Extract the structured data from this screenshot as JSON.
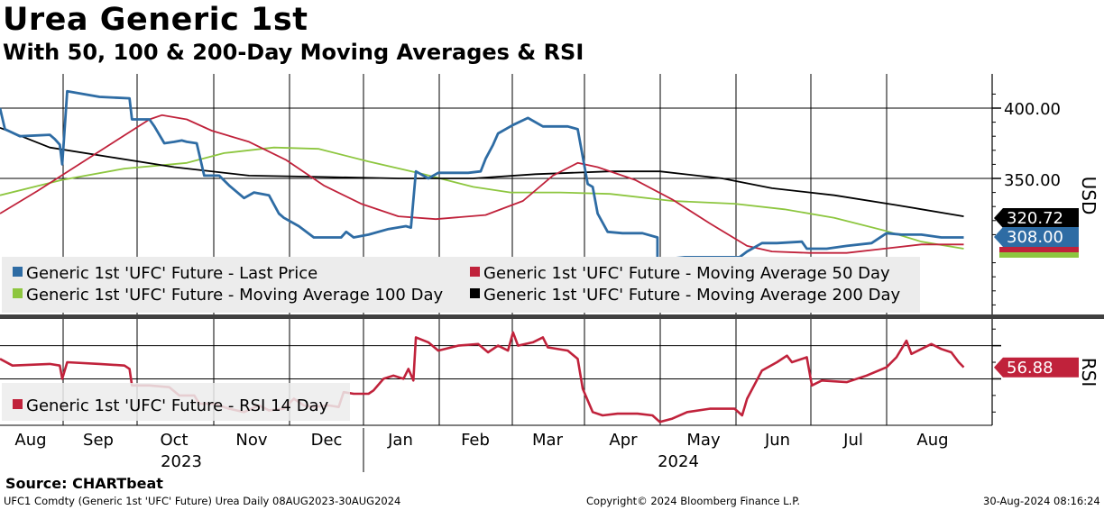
{
  "title": "Urea Generic 1st",
  "subtitle": "With 50, 100 & 200-Day Moving Averages & RSI",
  "source": "Source: CHARTbeat",
  "footer": {
    "left": "UFC1 Comdty (Generic 1st 'UFC' Future) Urea  Daily 08AUG2023-30AUG2024",
    "center": "Copyright© 2024 Bloomberg Finance L.P.",
    "right": "30-Aug-2024 08:16:24"
  },
  "colors": {
    "price": "#2e6ca4",
    "ma50": "#c0223b",
    "ma100": "#8dc63f",
    "ma200": "#000000",
    "rsi": "#c0223b"
  },
  "chart_data": [
    {
      "type": "line",
      "panel": "price",
      "title": "Urea Generic 1st",
      "ylabel": "USD",
      "ylim": [
        248,
        418
      ],
      "yticks": [
        400,
        350
      ],
      "ytick_labels": [
        "400.00",
        "350.00"
      ],
      "x_label_months": [
        "Aug",
        "Sep",
        "Oct",
        "Nov",
        "Dec",
        "Jan",
        "Feb",
        "Mar",
        "Apr",
        "May",
        "Jun",
        "Jul",
        "Aug"
      ],
      "x_label_years": [
        "2023",
        "2024"
      ],
      "x_range_days": [
        0,
        389
      ],
      "series": [
        {
          "name": "Generic 1st 'UFC' Future - Last Price",
          "color": "price",
          "points": [
            [
              0,
              400
            ],
            [
              2,
              385
            ],
            [
              8,
              380
            ],
            [
              20,
              381
            ],
            [
              22,
              378
            ],
            [
              24,
              374
            ],
            [
              25,
              360
            ],
            [
              27,
              412
            ],
            [
              40,
              408
            ],
            [
              52,
              407
            ],
            [
              53,
              392
            ],
            [
              60,
              392
            ],
            [
              62,
              387
            ],
            [
              66,
              375
            ],
            [
              70,
              376
            ],
            [
              73,
              377
            ],
            [
              75,
              376
            ],
            [
              79,
              375
            ],
            [
              82,
              352
            ],
            [
              88,
              352
            ],
            [
              92,
              345
            ],
            [
              98,
              336
            ],
            [
              102,
              340
            ],
            [
              108,
              338
            ],
            [
              112,
              325
            ],
            [
              114,
              322
            ],
            [
              120,
              316
            ],
            [
              126,
              308
            ],
            [
              133,
              308
            ],
            [
              137,
              308
            ],
            [
              139,
              312
            ],
            [
              142,
              308
            ],
            [
              148,
              310
            ],
            [
              156,
              314
            ],
            [
              163,
              316
            ],
            [
              165,
              315
            ],
            [
              167,
              355
            ],
            [
              172,
              350
            ],
            [
              176,
              354
            ],
            [
              188,
              354
            ],
            [
              193,
              355
            ],
            [
              195,
              364
            ],
            [
              198,
              374
            ],
            [
              200,
              382
            ],
            [
              206,
              388
            ],
            [
              212,
              393
            ],
            [
              218,
              387
            ],
            [
              228,
              387
            ],
            [
              232,
              385
            ],
            [
              236,
              346
            ],
            [
              238,
              344
            ],
            [
              240,
              325
            ],
            [
              244,
              312
            ],
            [
              250,
              311
            ],
            [
              258,
              311
            ],
            [
              264,
              308
            ],
            [
              264,
              292
            ],
            [
              275,
              294
            ],
            [
              288,
              294
            ],
            [
              297,
              294
            ],
            [
              300,
              298
            ],
            [
              306,
              304
            ],
            [
              312,
              304
            ],
            [
              322,
              305
            ],
            [
              324,
              300
            ],
            [
              332,
              300
            ],
            [
              340,
              302
            ],
            [
              350,
              304
            ],
            [
              356,
              311
            ],
            [
              362,
              310
            ],
            [
              370,
              310
            ],
            [
              378,
              308
            ],
            [
              387,
              308
            ]
          ]
        },
        {
          "name": "Generic 1st 'UFC' Future - Moving Average 50 Day",
          "color": "ma50",
          "points": [
            [
              0,
              325
            ],
            [
              15,
              341
            ],
            [
              30,
              358
            ],
            [
              45,
              375
            ],
            [
              60,
              392
            ],
            [
              65,
              395
            ],
            [
              75,
              392
            ],
            [
              85,
              384
            ],
            [
              100,
              376
            ],
            [
              115,
              363
            ],
            [
              130,
              345
            ],
            [
              145,
              332
            ],
            [
              160,
              323
            ],
            [
              175,
              321
            ],
            [
              195,
              324
            ],
            [
              210,
              334
            ],
            [
              222,
              352
            ],
            [
              232,
              361
            ],
            [
              240,
              358
            ],
            [
              255,
              349
            ],
            [
              270,
              335
            ],
            [
              285,
              318
            ],
            [
              300,
              302
            ],
            [
              310,
              298
            ],
            [
              325,
              297
            ],
            [
              340,
              297
            ],
            [
              355,
              300
            ],
            [
              370,
              303
            ],
            [
              387,
              303
            ]
          ]
        },
        {
          "name": "Generic 1st 'UFC' Future - Moving Average 100 Day",
          "color": "ma100",
          "points": [
            [
              0,
              338
            ],
            [
              25,
              349
            ],
            [
              50,
              357
            ],
            [
              75,
              361
            ],
            [
              90,
              368
            ],
            [
              110,
              372
            ],
            [
              128,
              371
            ],
            [
              148,
              362
            ],
            [
              170,
              353
            ],
            [
              190,
              344
            ],
            [
              205,
              340
            ],
            [
              225,
              340
            ],
            [
              245,
              339
            ],
            [
              270,
              334
            ],
            [
              295,
              332
            ],
            [
              315,
              328
            ],
            [
              335,
              322
            ],
            [
              355,
              313
            ],
            [
              370,
              305
            ],
            [
              387,
              300
            ]
          ]
        },
        {
          "name": "Generic 1st 'UFC' Future - Moving Average 200 Day",
          "color": "ma200",
          "points": [
            [
              0,
              386
            ],
            [
              20,
              372
            ],
            [
              45,
              365
            ],
            [
              70,
              358
            ],
            [
              100,
              352
            ],
            [
              130,
              351
            ],
            [
              160,
              350
            ],
            [
              190,
              350
            ],
            [
              215,
              353
            ],
            [
              245,
              355
            ],
            [
              265,
              355
            ],
            [
              290,
              350
            ],
            [
              310,
              343
            ],
            [
              335,
              338
            ],
            [
              360,
              331
            ],
            [
              387,
              323
            ]
          ]
        }
      ],
      "last_labels": [
        {
          "text": "320.72",
          "value": 320.72,
          "color": "ma200"
        },
        {
          "text": "308.00",
          "value": 308.0,
          "color": "price"
        }
      ]
    },
    {
      "type": "line",
      "panel": "rsi",
      "ylabel": "RSI",
      "ylim": [
        22,
        85
      ],
      "series": [
        {
          "name": "Generic 1st 'UFC' Future - RSI 14 Day",
          "color": "rsi",
          "points": [
            [
              0,
              62
            ],
            [
              5,
              58
            ],
            [
              20,
              59
            ],
            [
              24,
              58
            ],
            [
              25,
              50
            ],
            [
              27,
              60
            ],
            [
              40,
              59
            ],
            [
              50,
              58
            ],
            [
              52,
              56
            ],
            [
              53,
              46
            ],
            [
              60,
              46
            ],
            [
              68,
              45
            ],
            [
              72,
              40
            ],
            [
              78,
              40
            ],
            [
              80,
              35
            ],
            [
              86,
              35
            ],
            [
              92,
              32
            ],
            [
              98,
              30
            ],
            [
              104,
              34
            ],
            [
              108,
              31
            ],
            [
              114,
              32
            ],
            [
              118,
              38
            ],
            [
              122,
              34
            ],
            [
              126,
              33
            ],
            [
              132,
              34
            ],
            [
              136,
              33
            ],
            [
              138,
              42
            ],
            [
              142,
              41
            ],
            [
              148,
              41
            ],
            [
              150,
              43
            ],
            [
              154,
              50
            ],
            [
              158,
              52
            ],
            [
              162,
              50
            ],
            [
              164,
              56
            ],
            [
              166,
              49
            ],
            [
              167,
              75
            ],
            [
              172,
              72
            ],
            [
              176,
              67
            ],
            [
              184,
              70
            ],
            [
              192,
              71
            ],
            [
              196,
              66
            ],
            [
              200,
              70
            ],
            [
              204,
              67
            ],
            [
              206,
              78
            ],
            [
              208,
              70
            ],
            [
              214,
              72
            ],
            [
              218,
              75
            ],
            [
              220,
              69
            ],
            [
              228,
              67
            ],
            [
              232,
              62
            ],
            [
              234,
              44
            ],
            [
              238,
              30
            ],
            [
              242,
              28
            ],
            [
              248,
              29
            ],
            [
              256,
              29
            ],
            [
              262,
              28
            ],
            [
              265,
              24
            ],
            [
              270,
              26
            ],
            [
              276,
              30
            ],
            [
              285,
              32
            ],
            [
              295,
              32
            ],
            [
              298,
              28
            ],
            [
              300,
              38
            ],
            [
              306,
              55
            ],
            [
              312,
              60
            ],
            [
              316,
              64
            ],
            [
              318,
              60
            ],
            [
              324,
              63
            ],
            [
              326,
              46
            ],
            [
              330,
              49
            ],
            [
              340,
              48
            ],
            [
              348,
              52
            ],
            [
              356,
              57
            ],
            [
              360,
              63
            ],
            [
              364,
              73
            ],
            [
              366,
              65
            ],
            [
              370,
              68
            ],
            [
              374,
              71
            ],
            [
              378,
              68
            ],
            [
              382,
              66
            ],
            [
              385,
              60
            ],
            [
              387,
              57
            ]
          ]
        }
      ],
      "last_labels": [
        {
          "text": "56.88",
          "value": 56.88,
          "color": "rsi"
        }
      ]
    }
  ]
}
